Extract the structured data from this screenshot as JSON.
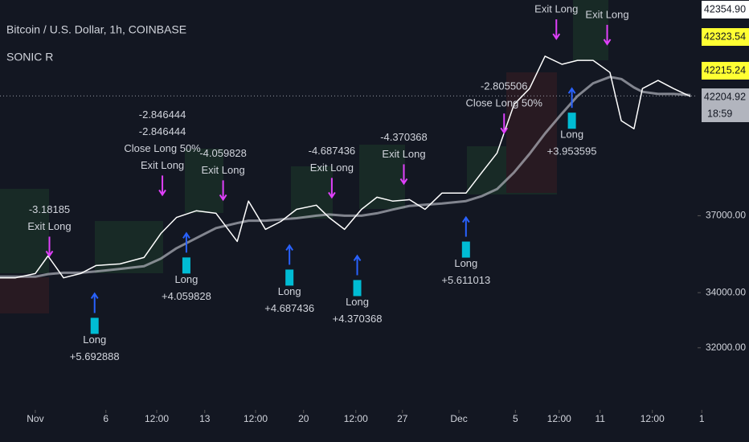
{
  "chart_data": {
    "type": "line",
    "title": "Bitcoin / U.S. Dollar, 1h, COINBASE",
    "subtitle": "SONIC R",
    "x": [
      -2.5,
      -1.4,
      0,
      0.9,
      2.0,
      3.2,
      4.3,
      6.0,
      7.7,
      8.9,
      10.0,
      11.4,
      12.8,
      14.3,
      15.1,
      16.3,
      17.4,
      18.5,
      19.9,
      20.8,
      21.9,
      23.1,
      24.2,
      25.3,
      26.5,
      27.6,
      28.8,
      30.5,
      31.6,
      32.7,
      33.9,
      35.0,
      36.1,
      37.3,
      38.4,
      39.5,
      40.7,
      41.5,
      42.4,
      43.0,
      44.1,
      45.2,
      46.4
    ],
    "series": [
      {
        "color": "#b2b5be",
        "values": [
          34600,
          34600,
          34600,
          34700,
          34750,
          34750,
          34800,
          34900,
          35000,
          35300,
          35700,
          36100,
          36500,
          36700,
          36800,
          36800,
          36850,
          36900,
          37000,
          37050,
          37000,
          37000,
          37100,
          37250,
          37400,
          37450,
          37500,
          37600,
          37800,
          38100,
          38800,
          39600,
          40500,
          41400,
          42200,
          42800,
          43100,
          43000,
          42600,
          42400,
          42300,
          42300,
          42250
        ]
      },
      {
        "color": "#ffffff",
        "values": [
          34560,
          34560,
          34720,
          35400,
          34560,
          34720,
          35030,
          35090,
          35340,
          36290,
          36930,
          37200,
          37100,
          35970,
          37600,
          36450,
          36770,
          37260,
          37430,
          36930,
          36450,
          37260,
          37760,
          37600,
          37660,
          37260,
          37930,
          37930,
          38780,
          39640,
          41810,
          42550,
          44090,
          43700,
          43890,
          43890,
          43310,
          41070,
          40710,
          42550,
          42930,
          42550,
          42180
        ]
      }
    ],
    "xlim": [
      -2.5,
      47.3
    ],
    "xticks": [
      {
        "value": 0,
        "label": "Nov"
      },
      {
        "value": 5,
        "label": "6"
      },
      {
        "value": 8.6,
        "label": "12:00"
      },
      {
        "value": 12,
        "label": "13"
      },
      {
        "value": 15.6,
        "label": "12:00"
      },
      {
        "value": 19,
        "label": "20"
      },
      {
        "value": 22.7,
        "label": "12:00"
      },
      {
        "value": 26,
        "label": "27"
      },
      {
        "value": 30,
        "label": "Dec"
      },
      {
        "value": 34,
        "label": "5"
      },
      {
        "value": 37.1,
        "label": "12:00"
      },
      {
        "value": 40,
        "label": "11"
      },
      {
        "value": 43.7,
        "label": "12:00"
      },
      {
        "value": 47.2,
        "label": "1"
      }
    ],
    "ylim": [
      29890,
      46900
    ],
    "log_scale": true,
    "yticks": [
      {
        "value": 32000,
        "label": "32000.00"
      },
      {
        "value": 34000,
        "label": "34000.00"
      },
      {
        "value": 37000,
        "label": "37000.00"
      }
    ],
    "price_labels": [
      {
        "value": 42354.9,
        "label": "42354.90",
        "color": "#ffffff"
      },
      {
        "value": 42323.54,
        "label": "42323.54",
        "color": "#ffff33"
      },
      {
        "value": 42215.24,
        "label": "42215.24",
        "color": "#ffff33"
      },
      {
        "value": 42204.92,
        "label": "42204.92",
        "color": "#b2b5be"
      }
    ],
    "countdown": "18:59",
    "trades": [
      {
        "x": 4.2,
        "price": 33960,
        "direction": "up",
        "texts": [
          "Long",
          "+5.692888"
        ]
      },
      {
        "x": 10.7,
        "price": 36290,
        "direction": "up",
        "texts": [
          "Long",
          "+4.059828"
        ]
      },
      {
        "x": 18.0,
        "price": 35810,
        "direction": "up",
        "texts": [
          "Long",
          "+4.687436"
        ]
      },
      {
        "x": 22.8,
        "price": 35400,
        "direction": "up",
        "texts": [
          "Long",
          "+4.370368"
        ]
      },
      {
        "x": 30.5,
        "price": 36930,
        "direction": "up",
        "texts": [
          "Long",
          "+5.611013"
        ]
      },
      {
        "x": 38.0,
        "price": 42550,
        "direction": "up",
        "texts": [
          "Long",
          "+3.953595"
        ]
      },
      {
        "x": 1.0,
        "price": 35400,
        "direction": "down",
        "texts": [
          "-3.18185",
          "Exit Long"
        ]
      },
      {
        "x": 9.0,
        "price": 37860,
        "direction": "down",
        "texts": [
          "-2.846444",
          "-2.846444",
          "Close Long 50%",
          "Exit Long"
        ]
      },
      {
        "x": 13.3,
        "price": 37660,
        "direction": "down",
        "texts": [
          "-4.059828",
          "Exit Long"
        ]
      },
      {
        "x": 21.0,
        "price": 37760,
        "direction": "down",
        "texts": [
          "-4.687436",
          "Exit Long"
        ]
      },
      {
        "x": 26.1,
        "price": 38330,
        "direction": "down",
        "texts": [
          "-4.370368",
          "Exit Long"
        ]
      },
      {
        "x": 33.2,
        "price": 40530,
        "direction": "down",
        "texts": [
          "-2.805506",
          "Close Long 50%"
        ]
      },
      {
        "x": 36.9,
        "price": 44950,
        "direction": "down",
        "texts": [
          "Exit Long"
        ]
      },
      {
        "x": 40.5,
        "price": 44680,
        "direction": "down",
        "texts": [
          "Exit Long"
        ]
      }
    ]
  }
}
